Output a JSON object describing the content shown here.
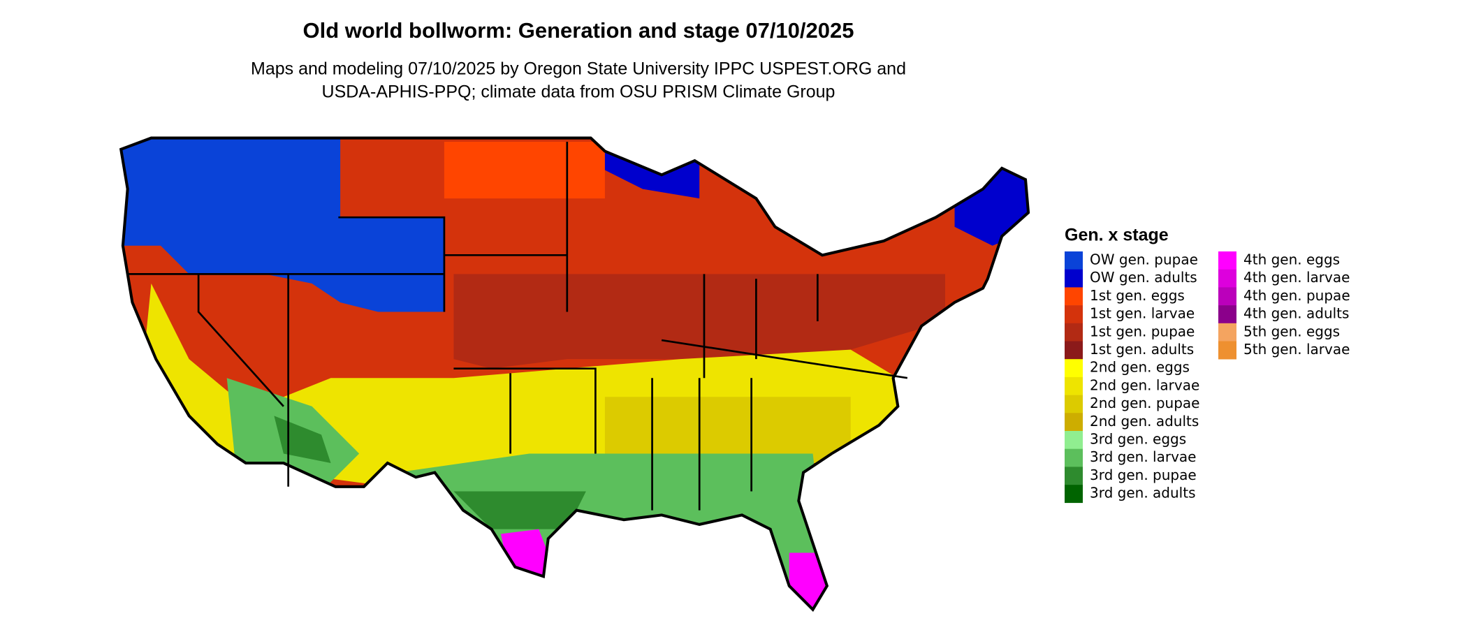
{
  "header": {
    "title": "Old world bollworm: Generation and stage 07/10/2025",
    "subtitle": [
      "Maps and modeling 07/10/2025 by Oregon State University IPPC USPEST.ORG and",
      "USDA-APHIS-PPQ; climate data from OSU PRISM Climate Group"
    ]
  },
  "legend": {
    "title": "Gen. x stage",
    "items": [
      {
        "label": "OW gen. pupae",
        "color": "#0a43d8"
      },
      {
        "label": "OW gen. adults",
        "color": "#0000cd"
      },
      {
        "label": "1st gen. eggs",
        "color": "#ff4500"
      },
      {
        "label": "1st gen. larvae",
        "color": "#d4330c"
      },
      {
        "label": "1st gen. pupae",
        "color": "#b22a14"
      },
      {
        "label": "1st gen. adults",
        "color": "#8b1a1a"
      },
      {
        "label": "2nd gen. eggs",
        "color": "#ffff00"
      },
      {
        "label": "2nd gen. larvae",
        "color": "#eee400"
      },
      {
        "label": "2nd gen. pupae",
        "color": "#dccb00"
      },
      {
        "label": "2nd gen. adults",
        "color": "#cdad00"
      },
      {
        "label": "3rd gen. eggs",
        "color": "#90ee90"
      },
      {
        "label": "3rd gen. larvae",
        "color": "#5cbf5c"
      },
      {
        "label": "3rd gen. pupae",
        "color": "#2e8b2e"
      },
      {
        "label": "3rd gen. adults",
        "color": "#006400"
      },
      {
        "label": "4th gen. eggs",
        "color": "#ff00ff"
      },
      {
        "label": "4th gen. larvae",
        "color": "#dd00dd"
      },
      {
        "label": "4th gen. pupae",
        "color": "#bb00bb"
      },
      {
        "label": "4th gen. adults",
        "color": "#8b008b"
      },
      {
        "label": "5th gen. eggs",
        "color": "#f4a460"
      },
      {
        "label": "5th gen. larvae",
        "color": "#ee9030"
      }
    ]
  }
}
